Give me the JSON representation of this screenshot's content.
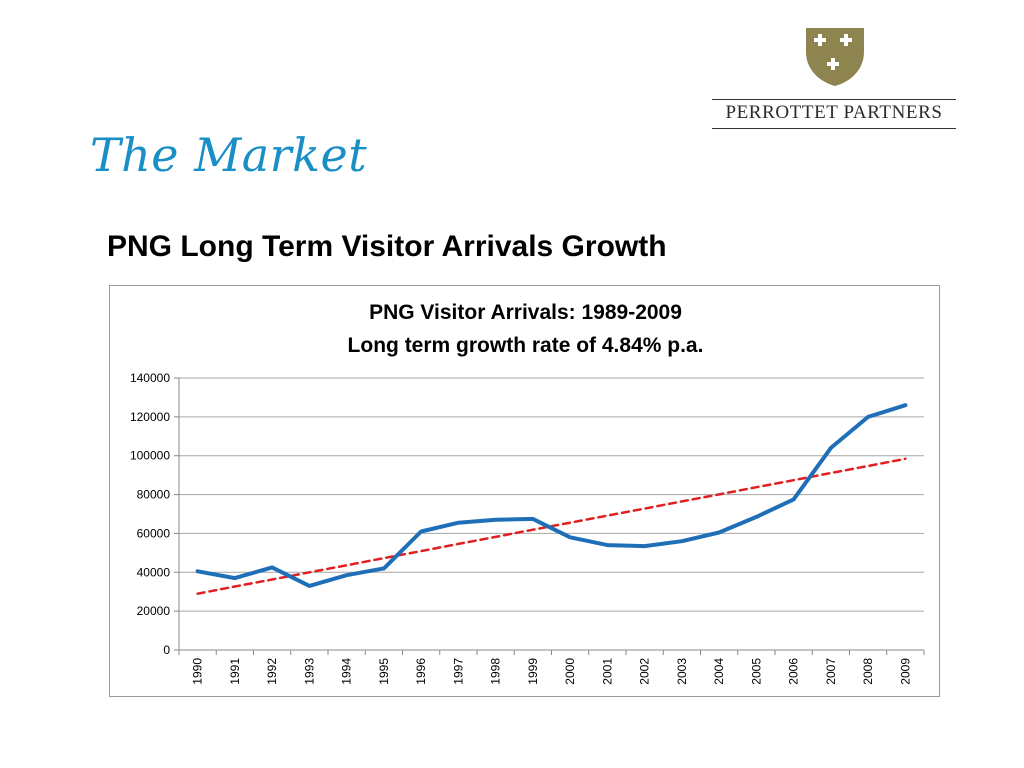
{
  "logo": {
    "brand": "PERROTTET PARTNERS",
    "shield_color": "#8d8450"
  },
  "slide": {
    "title": "The Market",
    "subtitle": "PNG Long Term Visitor Arrivals Growth"
  },
  "chart_data": {
    "type": "line",
    "title": "PNG Visitor Arrivals: 1989-2009",
    "subtitle": "Long term growth rate of 4.84% p.a.",
    "xlabel": "",
    "ylabel": "",
    "ylim": [
      0,
      140000
    ],
    "yticks": [
      0,
      20000,
      40000,
      60000,
      80000,
      100000,
      120000,
      140000
    ],
    "categories": [
      "1990",
      "1991",
      "1992",
      "1993",
      "1994",
      "1995",
      "1996",
      "1997",
      "1998",
      "1999",
      "2000",
      "2001",
      "2002",
      "2003",
      "2004",
      "2005",
      "2006",
      "2007",
      "2008",
      "2009"
    ],
    "series": [
      {
        "color": "#1f6fb8",
        "style": "solid",
        "values": [
          40500,
          37000,
          42500,
          33000,
          38500,
          42000,
          61000,
          65500,
          67000,
          67500,
          58000,
          54000,
          53500,
          56000,
          60500,
          68500,
          77500,
          104000,
          120000,
          126000
        ]
      },
      {
        "color": "#e02020",
        "style": "dashed",
        "values": [
          29000,
          32700,
          36300,
          40000,
          43600,
          47300,
          50900,
          54600,
          58200,
          61900,
          65500,
          69200,
          72800,
          76500,
          80100,
          83800,
          87400,
          91100,
          94700,
          98400
        ]
      }
    ],
    "grid": true,
    "legend": "none"
  }
}
